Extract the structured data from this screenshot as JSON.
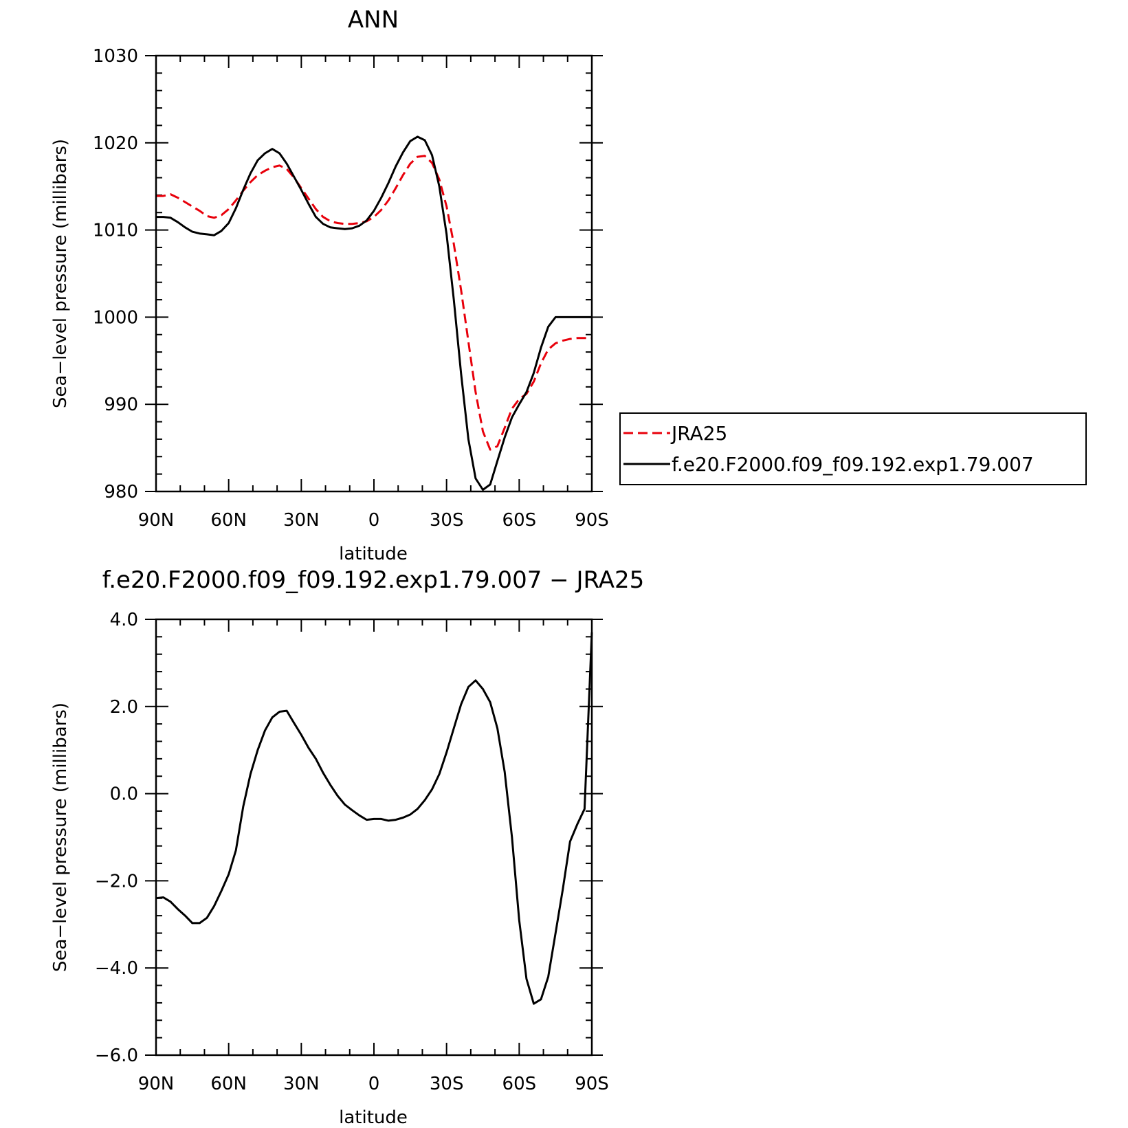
{
  "chart_data": [
    {
      "type": "line",
      "title": "ANN",
      "xlabel": "latitude",
      "ylabel": "Sea−level pressure (millibars)",
      "xlim": [
        90,
        -90
      ],
      "ylim": [
        980,
        1030
      ],
      "xticks": [
        90,
        60,
        30,
        0,
        -30,
        -60,
        -90
      ],
      "xtick_labels": [
        "90N",
        "60N",
        "30N",
        "0",
        "30S",
        "60S",
        "90S"
      ],
      "yticks": [
        980,
        990,
        1000,
        1010,
        1020,
        1030
      ],
      "ytick_labels": [
        "980",
        "990",
        "1000",
        "1010",
        "1020",
        "1030"
      ],
      "grid": false,
      "legend": "right",
      "series": [
        {
          "name": "JRA25",
          "color": "#e8000b",
          "dash": true,
          "x": [
            90,
            87,
            84,
            81,
            78,
            75,
            72,
            69,
            66,
            63,
            60,
            57,
            54,
            51,
            48,
            45,
            42,
            39,
            36,
            33,
            30,
            27,
            24,
            21,
            18,
            15,
            12,
            9,
            6,
            3,
            0,
            -3,
            -6,
            -9,
            -12,
            -15,
            -18,
            -21,
            -24,
            -27,
            -30,
            -33,
            -36,
            -39,
            -42,
            -45,
            -48,
            -51,
            -54,
            -57,
            -60,
            -63,
            -66,
            -69,
            -72,
            -75,
            -78,
            -81,
            -84,
            -87,
            -90
          ],
          "values": [
            1013.9,
            1013.9,
            1014.1,
            1013.7,
            1013.2,
            1012.7,
            1012.2,
            1011.6,
            1011.4,
            1011.7,
            1012.4,
            1013.4,
            1014.5,
            1015.5,
            1016.3,
            1016.8,
            1017.2,
            1017.4,
            1017.0,
            1016.0,
            1014.8,
            1013.6,
            1012.4,
            1011.5,
            1011.0,
            1010.8,
            1010.7,
            1010.7,
            1010.8,
            1011.0,
            1011.5,
            1012.3,
            1013.4,
            1014.8,
            1016.3,
            1017.6,
            1018.4,
            1018.5,
            1017.7,
            1015.8,
            1012.7,
            1008.4,
            1003.1,
            997.2,
            991.4,
            986.9,
            984.8,
            985.2,
            987.3,
            989.5,
            990.6,
            991.2,
            992.6,
            994.7,
            996.3,
            997.0,
            997.3,
            997.5,
            997.6,
            997.6,
            997.6
          ]
        },
        {
          "name": "f.e20.F2000.f09_f09.192.exp1.79.007",
          "color": "#000000",
          "dash": false,
          "x": [
            90,
            87,
            84,
            81,
            78,
            75,
            72,
            69,
            66,
            63,
            60,
            57,
            54,
            51,
            48,
            45,
            42,
            39,
            36,
            33,
            30,
            27,
            24,
            21,
            18,
            15,
            12,
            9,
            6,
            3,
            0,
            -3,
            -6,
            -9,
            -12,
            -15,
            -18,
            -21,
            -24,
            -27,
            -30,
            -33,
            -36,
            -39,
            -42,
            -45,
            -48,
            -51,
            -54,
            -57,
            -60,
            -63,
            -66,
            -69,
            -72,
            -75,
            -78,
            -81,
            -84,
            -87,
            -90
          ],
          "values": [
            1011.5,
            1011.5,
            1011.4,
            1010.9,
            1010.3,
            1009.8,
            1009.6,
            1009.5,
            1009.4,
            1009.9,
            1010.8,
            1012.5,
            1014.6,
            1016.5,
            1018.0,
            1018.8,
            1019.3,
            1018.8,
            1017.6,
            1016.1,
            1014.6,
            1013.0,
            1011.5,
            1010.7,
            1010.3,
            1010.2,
            1010.1,
            1010.2,
            1010.5,
            1011.1,
            1012.2,
            1013.7,
            1015.4,
            1017.3,
            1018.9,
            1020.2,
            1020.7,
            1020.3,
            1018.6,
            1015.0,
            1009.5,
            1002.0,
            993.5,
            986.0,
            981.5,
            980.2,
            980.8,
            983.5,
            986.2,
            988.5,
            990.0,
            991.4,
            993.6,
            996.5,
            998.9,
            1000.0,
            1000.0,
            1000.0,
            1000.0,
            1000.0,
            1000.0
          ]
        }
      ]
    },
    {
      "type": "line",
      "title": "f.e20.F2000.f09_f09.192.exp1.79.007 − JRA25",
      "xlabel": "latitude",
      "ylabel": "Sea−level pressure (millibars)",
      "xlim": [
        90,
        -90
      ],
      "ylim": [
        -6,
        4
      ],
      "xticks": [
        90,
        60,
        30,
        0,
        -30,
        -60,
        -90
      ],
      "xtick_labels": [
        "90N",
        "60N",
        "30N",
        "0",
        "30S",
        "60S",
        "90S"
      ],
      "yticks": [
        -6,
        -4,
        -2,
        0,
        2,
        4
      ],
      "ytick_labels": [
        "−6.0",
        "−4.0",
        "−2.0",
        "0.0",
        "2.0",
        "4.0"
      ],
      "grid": false,
      "series": [
        {
          "color": "#000000",
          "dash": false,
          "x": [
            90,
            87,
            84,
            81,
            78,
            75,
            72,
            69,
            66,
            63,
            60,
            57,
            54,
            51,
            48,
            45,
            42,
            39,
            36,
            33,
            30,
            27,
            24,
            21,
            18,
            15,
            12,
            9,
            6,
            3,
            0,
            -3,
            -6,
            -9,
            -12,
            -15,
            -18,
            -21,
            -24,
            -27,
            -30,
            -33,
            -36,
            -39,
            -42,
            -45,
            -48,
            -51,
            -54,
            -57,
            -60,
            -63,
            -66,
            -69,
            -72,
            -75,
            -78,
            -81,
            -84,
            -87,
            -90
          ],
          "values": [
            -2.4,
            -2.38,
            -2.48,
            -2.65,
            -2.8,
            -2.97,
            -2.97,
            -2.85,
            -2.58,
            -2.23,
            -1.85,
            -1.3,
            -0.3,
            0.45,
            1.0,
            1.45,
            1.75,
            1.88,
            1.9,
            1.62,
            1.35,
            1.05,
            0.8,
            0.48,
            0.2,
            -0.05,
            -0.25,
            -0.38,
            -0.5,
            -0.6,
            -0.58,
            -0.58,
            -0.62,
            -0.6,
            -0.55,
            -0.48,
            -0.35,
            -0.15,
            0.1,
            0.45,
            0.95,
            1.5,
            2.05,
            2.45,
            2.6,
            2.4,
            2.1,
            1.5,
            0.5,
            -1.0,
            -2.9,
            -4.25,
            -4.82,
            -4.72,
            -4.2,
            -3.2,
            -2.2,
            -1.1,
            -0.7,
            -0.35,
            3.7
          ]
        }
      ]
    }
  ]
}
